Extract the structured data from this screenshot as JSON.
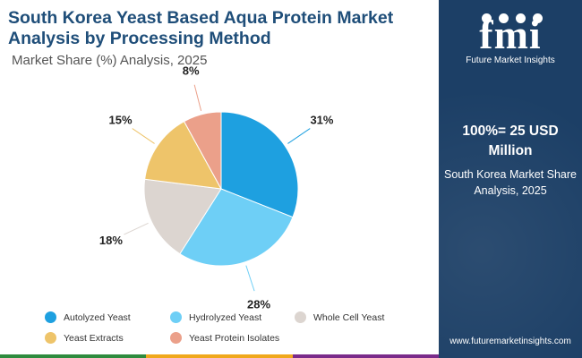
{
  "header": {
    "title": "South Korea Yeast Based Aqua Protein Market Analysis by Processing Method",
    "subtitle": "Market Share (%) Analysis, 2025"
  },
  "chart_data": {
    "type": "pie",
    "title": "South Korea Yeast Based Aqua Protein Market Analysis by Processing Method",
    "subtitle": "Market Share (%) Analysis, 2025",
    "unit": "%",
    "slices": [
      {
        "name": "Autolyzed Yeast",
        "value": 31,
        "label": "31%",
        "color": "#1ea0e0"
      },
      {
        "name": "Hydrolyzed Yeast",
        "value": 28,
        "label": "28%",
        "color": "#6ecff6"
      },
      {
        "name": "Whole Cell Yeast",
        "value": 18,
        "label": "18%",
        "color": "#dcd5d0"
      },
      {
        "name": "Yeast Extracts",
        "value": 15,
        "label": "15%",
        "color": "#eec46a"
      },
      {
        "name": "Yeast Protein Isolates",
        "value": 8,
        "label": "8%",
        "color": "#eba08a"
      }
    ],
    "legend_position": "bottom"
  },
  "legend": {
    "items": [
      {
        "label": "Autolyzed Yeast",
        "color": "#1ea0e0"
      },
      {
        "label": "Hydrolyzed Yeast",
        "color": "#6ecff6"
      },
      {
        "label": "Whole Cell Yeast",
        "color": "#dcd5d0"
      },
      {
        "label": "Yeast Extracts",
        "color": "#eec46a"
      },
      {
        "label": "Yeast Protein Isolates",
        "color": "#eba08a"
      }
    ]
  },
  "side_panel": {
    "logo_letters": "fmi",
    "logo_text": "Future Market Insights",
    "total_value": "100%= 25 USD Million",
    "description": "South Korea Market Share Analysis, 2025",
    "website": "www.futuremarketinsights.com",
    "background_color": "#1c3f66"
  },
  "colors": {
    "title": "#1f4e79",
    "bottom_strip": [
      "#2e8b3e",
      "#f0a81c",
      "#7a2b8a"
    ]
  }
}
